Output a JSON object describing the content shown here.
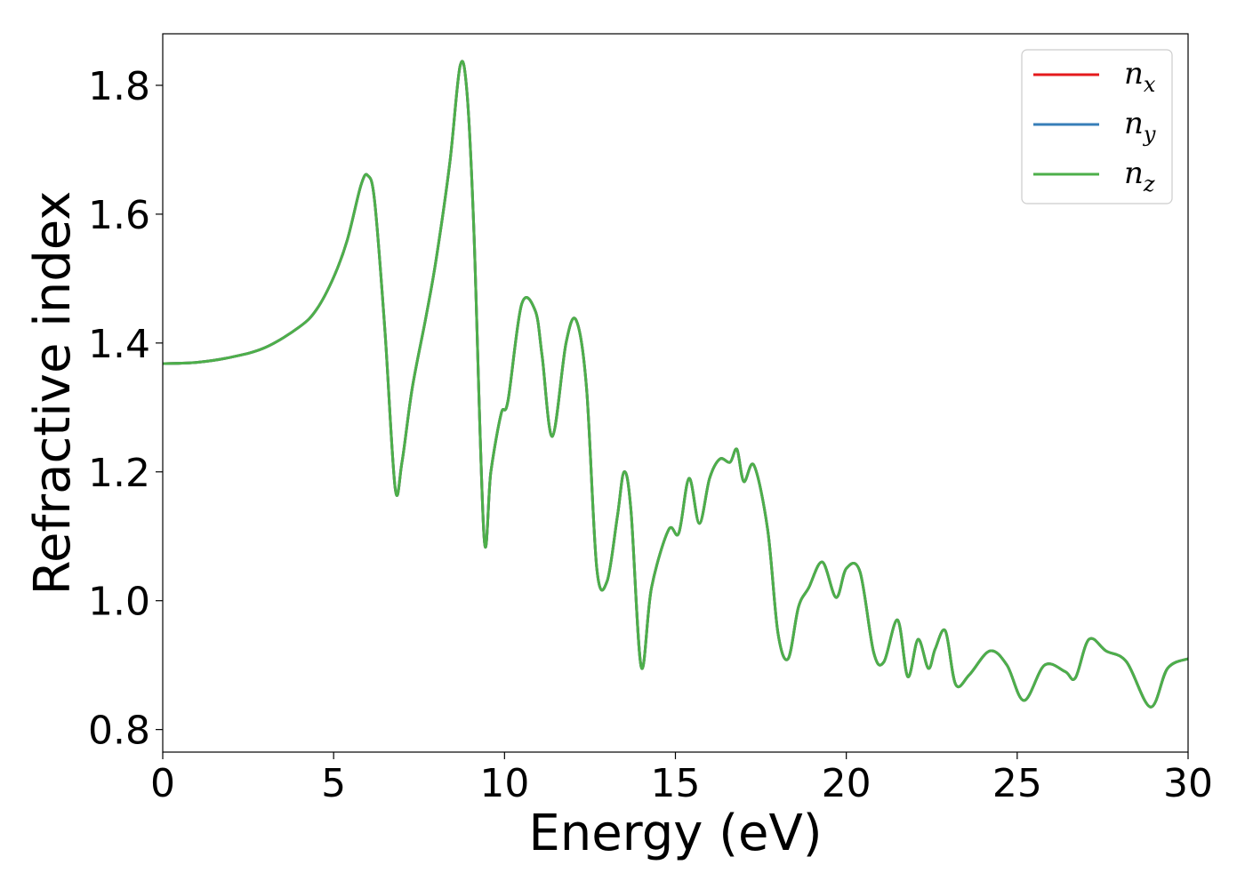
{
  "chart_data": {
    "type": "line",
    "xlabel": "Energy (eV)",
    "ylabel": "Refractive index",
    "xlim": [
      0,
      30
    ],
    "ylim": [
      0.765,
      1.88
    ],
    "xticks": [
      0,
      5,
      10,
      15,
      20,
      25,
      30
    ],
    "xtick_labels": [
      "0",
      "5",
      "10",
      "15",
      "20",
      "25",
      "30"
    ],
    "yticks": [
      0.8,
      1.0,
      1.2,
      1.4,
      1.6,
      1.8
    ],
    "ytick_labels": [
      "0.8",
      "1.0",
      "1.2",
      "1.4",
      "1.6",
      "1.8"
    ],
    "grid": false,
    "legend_position": "top-right",
    "x": [
      0,
      1,
      2,
      3,
      4,
      4.5,
      5,
      5.4,
      5.8,
      6.0,
      6.2,
      6.5,
      6.8,
      7.0,
      7.3,
      7.7,
      8.0,
      8.4,
      8.7,
      8.9,
      9.1,
      9.4,
      9.6,
      9.9,
      10.1,
      10.5,
      10.9,
      11.1,
      11.4,
      11.8,
      12.1,
      12.4,
      12.7,
      13.0,
      13.3,
      13.5,
      13.7,
      14.0,
      14.3,
      14.8,
      15.1,
      15.4,
      15.7,
      16.0,
      16.3,
      16.6,
      16.8,
      17.0,
      17.3,
      17.7,
      18.0,
      18.3,
      18.6,
      18.9,
      19.3,
      19.7,
      20.0,
      20.4,
      20.8,
      21.1,
      21.5,
      21.8,
      22.1,
      22.4,
      22.6,
      22.9,
      23.2,
      23.6,
      24.2,
      24.7,
      25.2,
      25.8,
      26.4,
      26.7,
      27.1,
      27.6,
      28.2,
      28.9,
      29.4,
      30.0
    ],
    "series": [
      {
        "name": "n_x",
        "color": "#e41a1c",
        "y": [
          1.368,
          1.37,
          1.378,
          1.393,
          1.425,
          1.452,
          1.502,
          1.56,
          1.645,
          1.66,
          1.62,
          1.42,
          1.175,
          1.215,
          1.33,
          1.44,
          1.53,
          1.68,
          1.83,
          1.79,
          1.58,
          1.1,
          1.2,
          1.29,
          1.31,
          1.46,
          1.45,
          1.38,
          1.255,
          1.4,
          1.435,
          1.33,
          1.05,
          1.03,
          1.13,
          1.2,
          1.14,
          0.897,
          1.02,
          1.11,
          1.105,
          1.19,
          1.12,
          1.19,
          1.22,
          1.215,
          1.235,
          1.185,
          1.21,
          1.11,
          0.95,
          0.91,
          0.99,
          1.02,
          1.06,
          1.005,
          1.05,
          1.045,
          0.92,
          0.905,
          0.97,
          0.882,
          0.94,
          0.895,
          0.925,
          0.953,
          0.87,
          0.885,
          0.922,
          0.9,
          0.845,
          0.9,
          0.89,
          0.88,
          0.94,
          0.922,
          0.905,
          0.835,
          0.895,
          0.91
        ]
      },
      {
        "name": "n_y",
        "color": "#377eb8",
        "y": [
          1.368,
          1.37,
          1.378,
          1.393,
          1.425,
          1.452,
          1.502,
          1.56,
          1.645,
          1.66,
          1.62,
          1.42,
          1.175,
          1.215,
          1.33,
          1.44,
          1.53,
          1.68,
          1.83,
          1.79,
          1.58,
          1.1,
          1.2,
          1.29,
          1.31,
          1.46,
          1.45,
          1.38,
          1.255,
          1.4,
          1.435,
          1.33,
          1.05,
          1.03,
          1.13,
          1.2,
          1.14,
          0.897,
          1.02,
          1.11,
          1.105,
          1.19,
          1.12,
          1.19,
          1.22,
          1.215,
          1.235,
          1.185,
          1.21,
          1.11,
          0.95,
          0.91,
          0.99,
          1.02,
          1.06,
          1.005,
          1.05,
          1.045,
          0.92,
          0.905,
          0.97,
          0.882,
          0.94,
          0.895,
          0.925,
          0.953,
          0.87,
          0.885,
          0.922,
          0.9,
          0.845,
          0.9,
          0.89,
          0.88,
          0.94,
          0.922,
          0.905,
          0.835,
          0.895,
          0.91
        ]
      },
      {
        "name": "n_z",
        "color": "#4daf4a",
        "y": [
          1.368,
          1.37,
          1.378,
          1.393,
          1.425,
          1.452,
          1.502,
          1.56,
          1.645,
          1.66,
          1.62,
          1.42,
          1.175,
          1.215,
          1.33,
          1.44,
          1.53,
          1.68,
          1.83,
          1.79,
          1.58,
          1.1,
          1.2,
          1.29,
          1.31,
          1.46,
          1.45,
          1.38,
          1.255,
          1.4,
          1.435,
          1.33,
          1.05,
          1.03,
          1.13,
          1.2,
          1.14,
          0.897,
          1.02,
          1.11,
          1.105,
          1.19,
          1.12,
          1.19,
          1.22,
          1.215,
          1.235,
          1.185,
          1.21,
          1.11,
          0.95,
          0.91,
          0.99,
          1.02,
          1.06,
          1.005,
          1.05,
          1.045,
          0.92,
          0.905,
          0.97,
          0.882,
          0.94,
          0.895,
          0.925,
          0.953,
          0.87,
          0.885,
          0.922,
          0.9,
          0.845,
          0.9,
          0.89,
          0.88,
          0.94,
          0.922,
          0.905,
          0.835,
          0.895,
          0.91
        ]
      }
    ],
    "legend": [
      {
        "base": "n",
        "sub": "x",
        "color": "#e41a1c"
      },
      {
        "base": "n",
        "sub": "y",
        "color": "#377eb8"
      },
      {
        "base": "n",
        "sub": "z",
        "color": "#4daf4a"
      }
    ]
  }
}
